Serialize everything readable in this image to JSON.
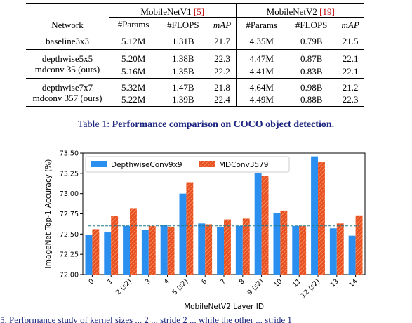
{
  "table": {
    "header_network": "Network",
    "group1": {
      "name": "MobileNetV1",
      "ref": "[5]"
    },
    "group2": {
      "name": "MobileNetV2",
      "ref": "[19]"
    },
    "cols": [
      "#Params",
      "#FLOPS",
      "mAP",
      "#Params",
      "#FLOPS",
      "mAP"
    ],
    "rows": [
      {
        "name": "baseline3x3",
        "bold": false,
        "cells": [
          "5.12M",
          "1.31B",
          "21.7",
          "4.35M",
          "0.79B",
          "21.5"
        ]
      },
      {
        "name": "depthwise5x5",
        "bold": false,
        "cells": [
          "5.20M",
          "1.38B",
          "22.3",
          "4.47M",
          "0.87B",
          "22.1"
        ]
      },
      {
        "name": "mdconv 35 (ours)",
        "bold": true,
        "cells": [
          "5.16M",
          "1.35B",
          "22.2",
          "4.41M",
          "0.83B",
          "22.1"
        ]
      },
      {
        "name": "depthwise7x7",
        "bold": false,
        "cells": [
          "5.32M",
          "1.47B",
          "21.8",
          "4.64M",
          "0.98B",
          "21.2"
        ]
      },
      {
        "name": "mdconv 357 (ours)",
        "bold": true,
        "cells": [
          "5.22M",
          "1.39B",
          "22.4",
          "4.49M",
          "0.88B",
          "22.3"
        ]
      }
    ]
  },
  "caption": {
    "label": "Table 1:",
    "text": "Performance comparison on COCO object detection."
  },
  "chart_data": {
    "type": "bar",
    "xlabel": "MobileNetV2 Layer ID",
    "ylabel": "ImageNet Top-1 Accuracy (%)",
    "ylim": [
      72.0,
      73.5
    ],
    "yticks": [
      "72.00",
      "72.25",
      "72.50",
      "72.75",
      "73.00",
      "73.25",
      "73.50"
    ],
    "categories": [
      "0",
      "1",
      "2 (s2)",
      "3",
      "4",
      "5 (s2)",
      "6",
      "7",
      "8",
      "9 (s2)",
      "10",
      "11",
      "12 (s2)",
      "13",
      "14"
    ],
    "series": [
      {
        "name": "DepthwiseConv9x9",
        "color": "#2b8ff0",
        "values": [
          72.49,
          72.52,
          72.6,
          72.55,
          72.61,
          73.0,
          72.63,
          72.59,
          72.6,
          73.25,
          72.76,
          72.6,
          73.46,
          72.57,
          72.48
        ]
      },
      {
        "name": "MDConv3579",
        "color": "#e8501f",
        "values": [
          72.56,
          72.72,
          72.82,
          72.6,
          72.59,
          73.14,
          72.62,
          72.68,
          72.69,
          73.22,
          72.79,
          72.6,
          73.39,
          72.63,
          72.73
        ]
      }
    ],
    "baseline": 72.6,
    "grid": false,
    "legend_position": "top"
  },
  "bottom_text": "5.  Performance study of kernel sizes  ... 2 ... stride 2 ... while the other ... stride 1"
}
